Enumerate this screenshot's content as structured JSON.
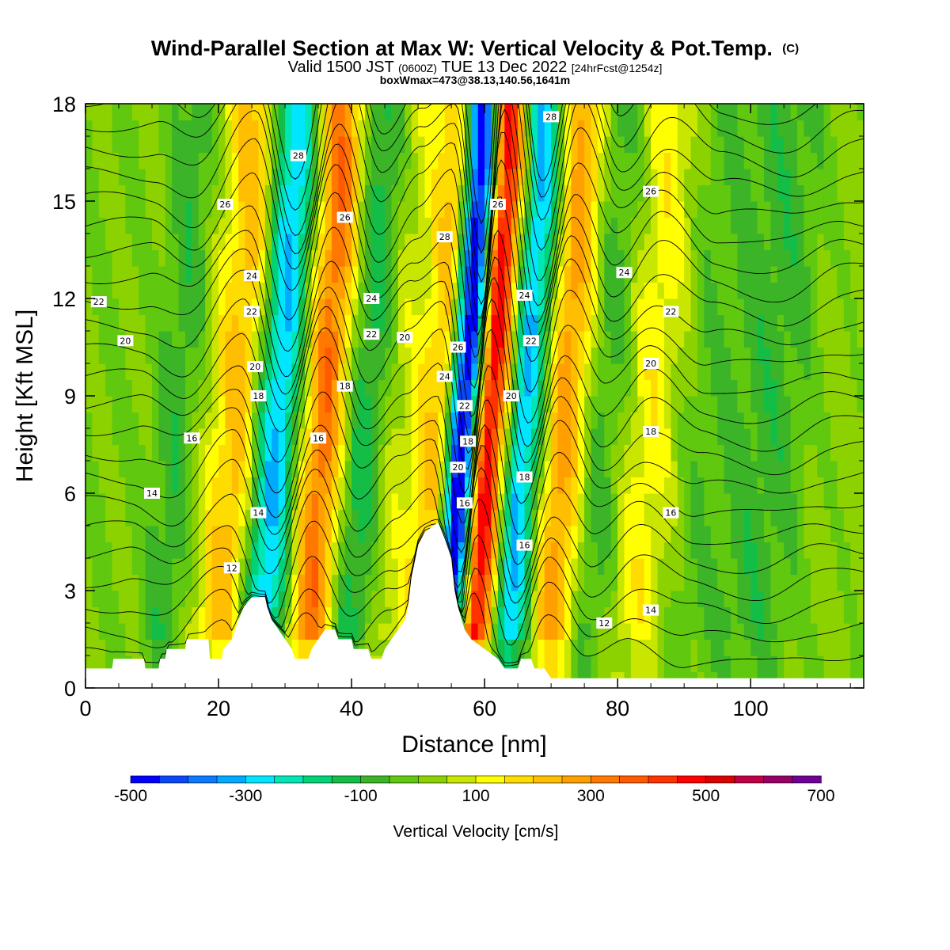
{
  "title": {
    "main": "Wind-Parallel Section at Max W: Vertical Velocity & Pot.Temp.",
    "copyright": "(C)",
    "line2_a": "Valid 1500 JST ",
    "line2_b": "(0600Z)",
    "line2_c": " TUE 13 Dec 2022 ",
    "line2_d": "[24hrFcst@1254z]",
    "line3": "boxWmax=473@38.13,140.56,1641m"
  },
  "chart_data": {
    "type": "contour",
    "xlabel": "Distance [nm]",
    "ylabel": "Height [Kft MSL]",
    "xlim": [
      0,
      117
    ],
    "ylim": [
      0,
      18
    ],
    "x_ticks": [
      0,
      20,
      40,
      60,
      80,
      100
    ],
    "y_ticks": [
      0,
      3,
      6,
      9,
      12,
      15,
      18
    ],
    "colorbar": {
      "title": "Vertical Velocity [cm/s]",
      "range": [
        -500,
        700
      ],
      "step": 50,
      "labels": [
        -500,
        -300,
        -100,
        100,
        300,
        500,
        700
      ],
      "colors": [
        "#0000ff",
        "#0a46fa",
        "#0a78ff",
        "#00aaff",
        "#00e6ff",
        "#00e6b4",
        "#00d278",
        "#14be46",
        "#3cb428",
        "#5fc80f",
        "#8cd200",
        "#c8e600",
        "#ffff00",
        "#ffdc00",
        "#ffbe00",
        "#ffa000",
        "#ff7800",
        "#ff5a00",
        "#ff3200",
        "#ff0000",
        "#dc0000",
        "#be0046",
        "#960064",
        "#6e0096"
      ]
    },
    "vertical_velocity_series": {
      "name": "Vertical Velocity",
      "peak": 473,
      "features_cm_s": [
        {
          "x": 5,
          "w": 0
        },
        {
          "x": 11,
          "w": -80
        },
        {
          "x": 20,
          "w": 220
        },
        {
          "x": 26,
          "w": -300
        },
        {
          "x": 33,
          "w": 330
        },
        {
          "x": 39,
          "w": -120
        },
        {
          "x": 45,
          "w": 80
        },
        {
          "x": 50,
          "w": 200
        },
        {
          "x": 54,
          "w": -480
        },
        {
          "x": 58,
          "w": 470
        },
        {
          "x": 63,
          "w": -300
        },
        {
          "x": 69,
          "w": 270
        },
        {
          "x": 75,
          "w": -60
        },
        {
          "x": 82,
          "w": 130
        },
        {
          "x": 90,
          "w": -40
        },
        {
          "x": 100,
          "w": -80
        },
        {
          "x": 110,
          "w": 20
        }
      ]
    },
    "potential_temperature_series": {
      "name": "Pot.Temp.",
      "contour_levels": [
        8,
        9,
        10,
        11,
        12,
        13,
        14,
        15,
        16,
        17,
        18,
        19,
        20,
        21,
        22,
        23,
        24,
        25,
        26,
        27,
        28,
        29,
        30
      ],
      "labels": [
        {
          "text": "28",
          "x": 32,
          "y": 16.4
        },
        {
          "text": "28",
          "x": 70,
          "y": 17.6
        },
        {
          "text": "28",
          "x": 54,
          "y": 13.9
        },
        {
          "text": "26",
          "x": 21,
          "y": 14.9
        },
        {
          "text": "26",
          "x": 39,
          "y": 14.5
        },
        {
          "text": "26",
          "x": 62,
          "y": 14.9
        },
        {
          "text": "26",
          "x": 85,
          "y": 15.3
        },
        {
          "text": "26",
          "x": 56,
          "y": 10.5
        },
        {
          "text": "24",
          "x": 25,
          "y": 12.7
        },
        {
          "text": "24",
          "x": 43,
          "y": 12.0
        },
        {
          "text": "24",
          "x": 66,
          "y": 12.1
        },
        {
          "text": "24",
          "x": 81,
          "y": 12.8
        },
        {
          "text": "24",
          "x": 54,
          "y": 9.6
        },
        {
          "text": "22",
          "x": 2,
          "y": 11.9
        },
        {
          "text": "22",
          "x": 25,
          "y": 11.6
        },
        {
          "text": "22",
          "x": 43,
          "y": 10.9
        },
        {
          "text": "22",
          "x": 67,
          "y": 10.7
        },
        {
          "text": "22",
          "x": 88,
          "y": 11.6
        },
        {
          "text": "22",
          "x": 57,
          "y": 8.7
        },
        {
          "text": "20",
          "x": 6,
          "y": 10.7
        },
        {
          "text": "20",
          "x": 25.5,
          "y": 9.9
        },
        {
          "text": "20",
          "x": 48,
          "y": 10.8
        },
        {
          "text": "20",
          "x": 64,
          "y": 9.0
        },
        {
          "text": "20",
          "x": 85,
          "y": 10.0
        },
        {
          "text": "20",
          "x": 56,
          "y": 6.8
        },
        {
          "text": "18",
          "x": 26,
          "y": 9.0
        },
        {
          "text": "18",
          "x": 39,
          "y": 9.3
        },
        {
          "text": "18",
          "x": 85,
          "y": 7.9
        },
        {
          "text": "18",
          "x": 57.5,
          "y": 7.6
        },
        {
          "text": "16",
          "x": 16,
          "y": 7.7
        },
        {
          "text": "16",
          "x": 35,
          "y": 7.7
        },
        {
          "text": "16",
          "x": 88,
          "y": 5.4
        },
        {
          "text": "16",
          "x": 57,
          "y": 5.7
        },
        {
          "text": "16",
          "x": 66,
          "y": 4.4
        },
        {
          "text": "18",
          "x": 66,
          "y": 6.5
        },
        {
          "text": "14",
          "x": 10,
          "y": 6.0
        },
        {
          "text": "14",
          "x": 26,
          "y": 5.4
        },
        {
          "text": "14",
          "x": 85,
          "y": 2.4
        },
        {
          "text": "12",
          "x": 22,
          "y": 3.7
        },
        {
          "text": "12",
          "x": 78,
          "y": 2.0
        }
      ]
    },
    "terrain_kft": [
      {
        "x": 0,
        "h": 0.6
      },
      {
        "x": 4,
        "h": 0.6
      },
      {
        "x": 4.2,
        "h": 0.9
      },
      {
        "x": 8.8,
        "h": 0.9
      },
      {
        "x": 9,
        "h": 0.6
      },
      {
        "x": 11,
        "h": 0.6
      },
      {
        "x": 11.2,
        "h": 0.9
      },
      {
        "x": 12,
        "h": 0.9
      },
      {
        "x": 12.2,
        "h": 1.2
      },
      {
        "x": 15,
        "h": 1.2
      },
      {
        "x": 15.2,
        "h": 1.5
      },
      {
        "x": 18.5,
        "h": 1.5
      },
      {
        "x": 18.7,
        "h": 0.9
      },
      {
        "x": 20.5,
        "h": 0.9
      },
      {
        "x": 20.7,
        "h": 1.2
      },
      {
        "x": 22,
        "h": 1.5
      },
      {
        "x": 22.5,
        "h": 1.8
      },
      {
        "x": 23,
        "h": 2.1
      },
      {
        "x": 23.8,
        "h": 2.5
      },
      {
        "x": 25,
        "h": 2.8
      },
      {
        "x": 27,
        "h": 2.8
      },
      {
        "x": 27.3,
        "h": 2.5
      },
      {
        "x": 28,
        "h": 2.1
      },
      {
        "x": 29,
        "h": 1.8
      },
      {
        "x": 30,
        "h": 1.5
      },
      {
        "x": 31,
        "h": 1.2
      },
      {
        "x": 31.5,
        "h": 0.9
      },
      {
        "x": 33.5,
        "h": 0.9
      },
      {
        "x": 34,
        "h": 1.2
      },
      {
        "x": 35,
        "h": 1.5
      },
      {
        "x": 36,
        "h": 1.8
      },
      {
        "x": 37.5,
        "h": 1.8
      },
      {
        "x": 38,
        "h": 1.5
      },
      {
        "x": 40,
        "h": 1.5
      },
      {
        "x": 40.3,
        "h": 1.2
      },
      {
        "x": 42.5,
        "h": 1.2
      },
      {
        "x": 43,
        "h": 0.9
      },
      {
        "x": 44.5,
        "h": 0.9
      },
      {
        "x": 45,
        "h": 1.2
      },
      {
        "x": 46,
        "h": 1.5
      },
      {
        "x": 47,
        "h": 1.8
      },
      {
        "x": 48,
        "h": 2.1
      },
      {
        "x": 48.5,
        "h": 2.5
      },
      {
        "x": 49,
        "h": 3.4
      },
      {
        "x": 50,
        "h": 4.4
      },
      {
        "x": 51,
        "h": 4.8
      },
      {
        "x": 53,
        "h": 5.1
      },
      {
        "x": 54,
        "h": 4.6
      },
      {
        "x": 55,
        "h": 4.0
      },
      {
        "x": 55.5,
        "h": 3.0
      },
      {
        "x": 56,
        "h": 2.5
      },
      {
        "x": 57,
        "h": 1.8
      },
      {
        "x": 58,
        "h": 1.5
      },
      {
        "x": 60,
        "h": 1.2
      },
      {
        "x": 62,
        "h": 0.9
      },
      {
        "x": 63,
        "h": 0.6
      },
      {
        "x": 65,
        "h": 0.6
      },
      {
        "x": 65.5,
        "h": 0.9
      },
      {
        "x": 67,
        "h": 0.9
      },
      {
        "x": 67.5,
        "h": 0.6
      },
      {
        "x": 69,
        "h": 0.6
      },
      {
        "x": 70,
        "h": 0.3
      },
      {
        "x": 117,
        "h": 0.3
      }
    ]
  }
}
